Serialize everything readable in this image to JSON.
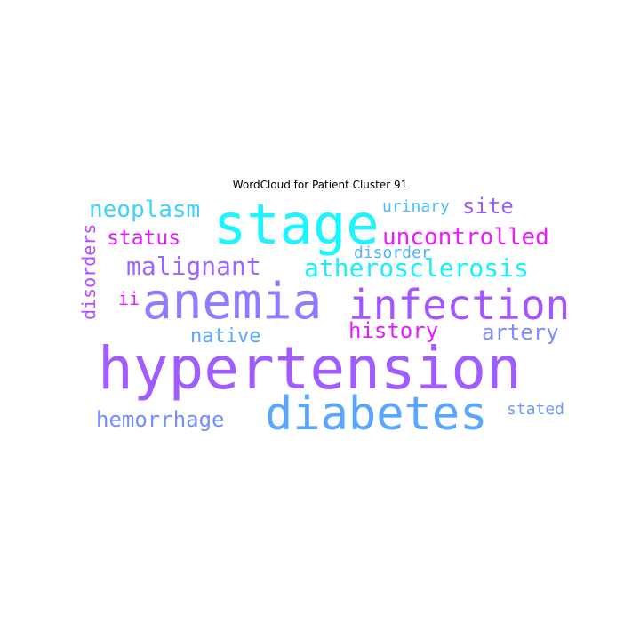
{
  "figure": {
    "title": "WordCloud for Patient Cluster 91"
  },
  "wordcloud": {
    "words": [
      {
        "text": "hypertension",
        "color": "#a05cff"
      },
      {
        "text": "anemia",
        "color": "#8f7bff"
      },
      {
        "text": "stage",
        "color": "#1af5ff"
      },
      {
        "text": "infection",
        "color": "#a355ff"
      },
      {
        "text": "diabetes",
        "color": "#5aa6ff"
      },
      {
        "text": "atherosclerosis",
        "color": "#19f0ff"
      },
      {
        "text": "malignant",
        "color": "#9a66ff"
      },
      {
        "text": "neoplasm",
        "color": "#3dd2ff"
      },
      {
        "text": "uncontrolled",
        "color": "#ef1bff"
      },
      {
        "text": "status",
        "color": "#e419ff"
      },
      {
        "text": "history",
        "color": "#e31bff"
      },
      {
        "text": "artery",
        "color": "#7d8cff"
      },
      {
        "text": "native",
        "color": "#59a7ff"
      },
      {
        "text": "hemorrhage",
        "color": "#748dff"
      },
      {
        "text": "site",
        "color": "#9b60ff"
      },
      {
        "text": "urinary",
        "color": "#4cbcff"
      },
      {
        "text": "disorder",
        "color": "#53b1ff"
      },
      {
        "text": "disorders",
        "color": "#b34dff"
      },
      {
        "text": "ii",
        "color": "#e519ff"
      },
      {
        "text": "stated",
        "color": "#6f98ff"
      }
    ]
  }
}
